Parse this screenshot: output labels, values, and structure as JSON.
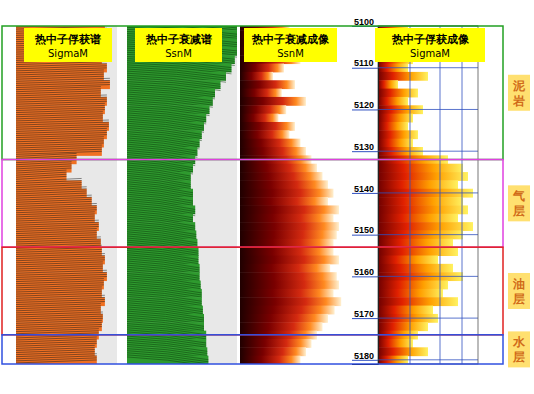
{
  "chart_data": {
    "type": "well_log",
    "ylim": [
      5100,
      5181
    ],
    "yticks": [
      5100,
      5110,
      5120,
      5130,
      5140,
      5150,
      5160,
      5170,
      5180
    ],
    "depths": [
      5100,
      5102,
      5104,
      5106,
      5108,
      5110,
      5112,
      5114,
      5116,
      5118,
      5120,
      5122,
      5124,
      5126,
      5128,
      5130,
      5132,
      5134,
      5136,
      5138,
      5140,
      5142,
      5144,
      5146,
      5148,
      5150,
      5152,
      5154,
      5156,
      5158,
      5160,
      5162,
      5164,
      5166,
      5168,
      5170,
      5172,
      5174,
      5176,
      5178,
      5180
    ],
    "tracks": [
      {
        "title": "热中子俘获谱",
        "curve": "SigmaM",
        "type": "spectrum",
        "color": "#f07022",
        "values": [
          0.88,
          0.9,
          0.86,
          0.92,
          0.85,
          0.9,
          0.87,
          0.93,
          0.84,
          0.9,
          0.88,
          0.86,
          0.92,
          0.9,
          0.87,
          0.85,
          0.6,
          0.55,
          0.5,
          0.65,
          0.7,
          0.75,
          0.8,
          0.78,
          0.82,
          0.8,
          0.84,
          0.85,
          0.88,
          0.86,
          0.9,
          0.87,
          0.85,
          0.88,
          0.84,
          0.86,
          0.85,
          0.82,
          0.8,
          0.78,
          0.8
        ]
      },
      {
        "title": "热中子衰减谱",
        "curve": "SsnM",
        "type": "spectrum",
        "color": "#2e9a2e",
        "values": [
          1,
          1,
          1,
          1,
          0.98,
          0.95,
          0.9,
          0.85,
          0.8,
          0.78,
          0.75,
          0.72,
          0.7,
          0.68,
          0.66,
          0.64,
          0.62,
          0.6,
          0.58,
          0.58,
          0.6,
          0.6,
          0.62,
          0.6,
          0.62,
          0.63,
          0.64,
          0.65,
          0.65,
          0.66,
          0.66,
          0.67,
          0.68,
          0.68,
          0.69,
          0.7,
          0.7,
          0.72,
          0.72,
          0.73,
          0.74
        ]
      },
      {
        "title": "热中子衰减成像",
        "curve": "SsnM",
        "type": "image",
        "color": "#c01010",
        "values": [
          0.45,
          0.3,
          0.5,
          0.35,
          0.55,
          0.4,
          0.3,
          0.5,
          0.38,
          0.6,
          0.42,
          0.35,
          0.5,
          0.45,
          0.55,
          0.6,
          0.65,
          0.7,
          0.75,
          0.8,
          0.85,
          0.8,
          0.9,
          0.85,
          0.9,
          0.88,
          0.85,
          0.85,
          0.9,
          0.82,
          0.88,
          0.9,
          0.85,
          0.92,
          0.86,
          0.8,
          0.75,
          0.7,
          0.65,
          0.6,
          0.55
        ]
      },
      {
        "title": "热中子俘获成像",
        "curve": "SigmaM",
        "type": "image",
        "color": "#ffb000",
        "values": [
          0.3,
          0.4,
          0.25,
          0.45,
          0.35,
          0.3,
          0.5,
          0.2,
          0.4,
          0.3,
          0.45,
          0.35,
          0.3,
          0.4,
          0.35,
          0.45,
          0.7,
          0.85,
          0.9,
          0.8,
          0.95,
          0.85,
          0.9,
          0.8,
          0.95,
          0.85,
          0.75,
          0.8,
          0.6,
          0.75,
          0.85,
          0.7,
          0.65,
          0.8,
          0.55,
          0.6,
          0.5,
          0.4,
          0.35,
          0.5,
          0.3
        ]
      }
    ],
    "zones": [
      {
        "label": "泥岩",
        "top": 5100,
        "bottom": 5132,
        "color": "#22a022"
      },
      {
        "label": "气层",
        "top": 5132,
        "bottom": 5153,
        "color": "#e040e0"
      },
      {
        "label": "油层",
        "top": 5153,
        "bottom": 5174,
        "color": "#e02020"
      },
      {
        "label": "水层",
        "top": 5174,
        "bottom": 5181,
        "color": "#3050e0"
      }
    ]
  }
}
